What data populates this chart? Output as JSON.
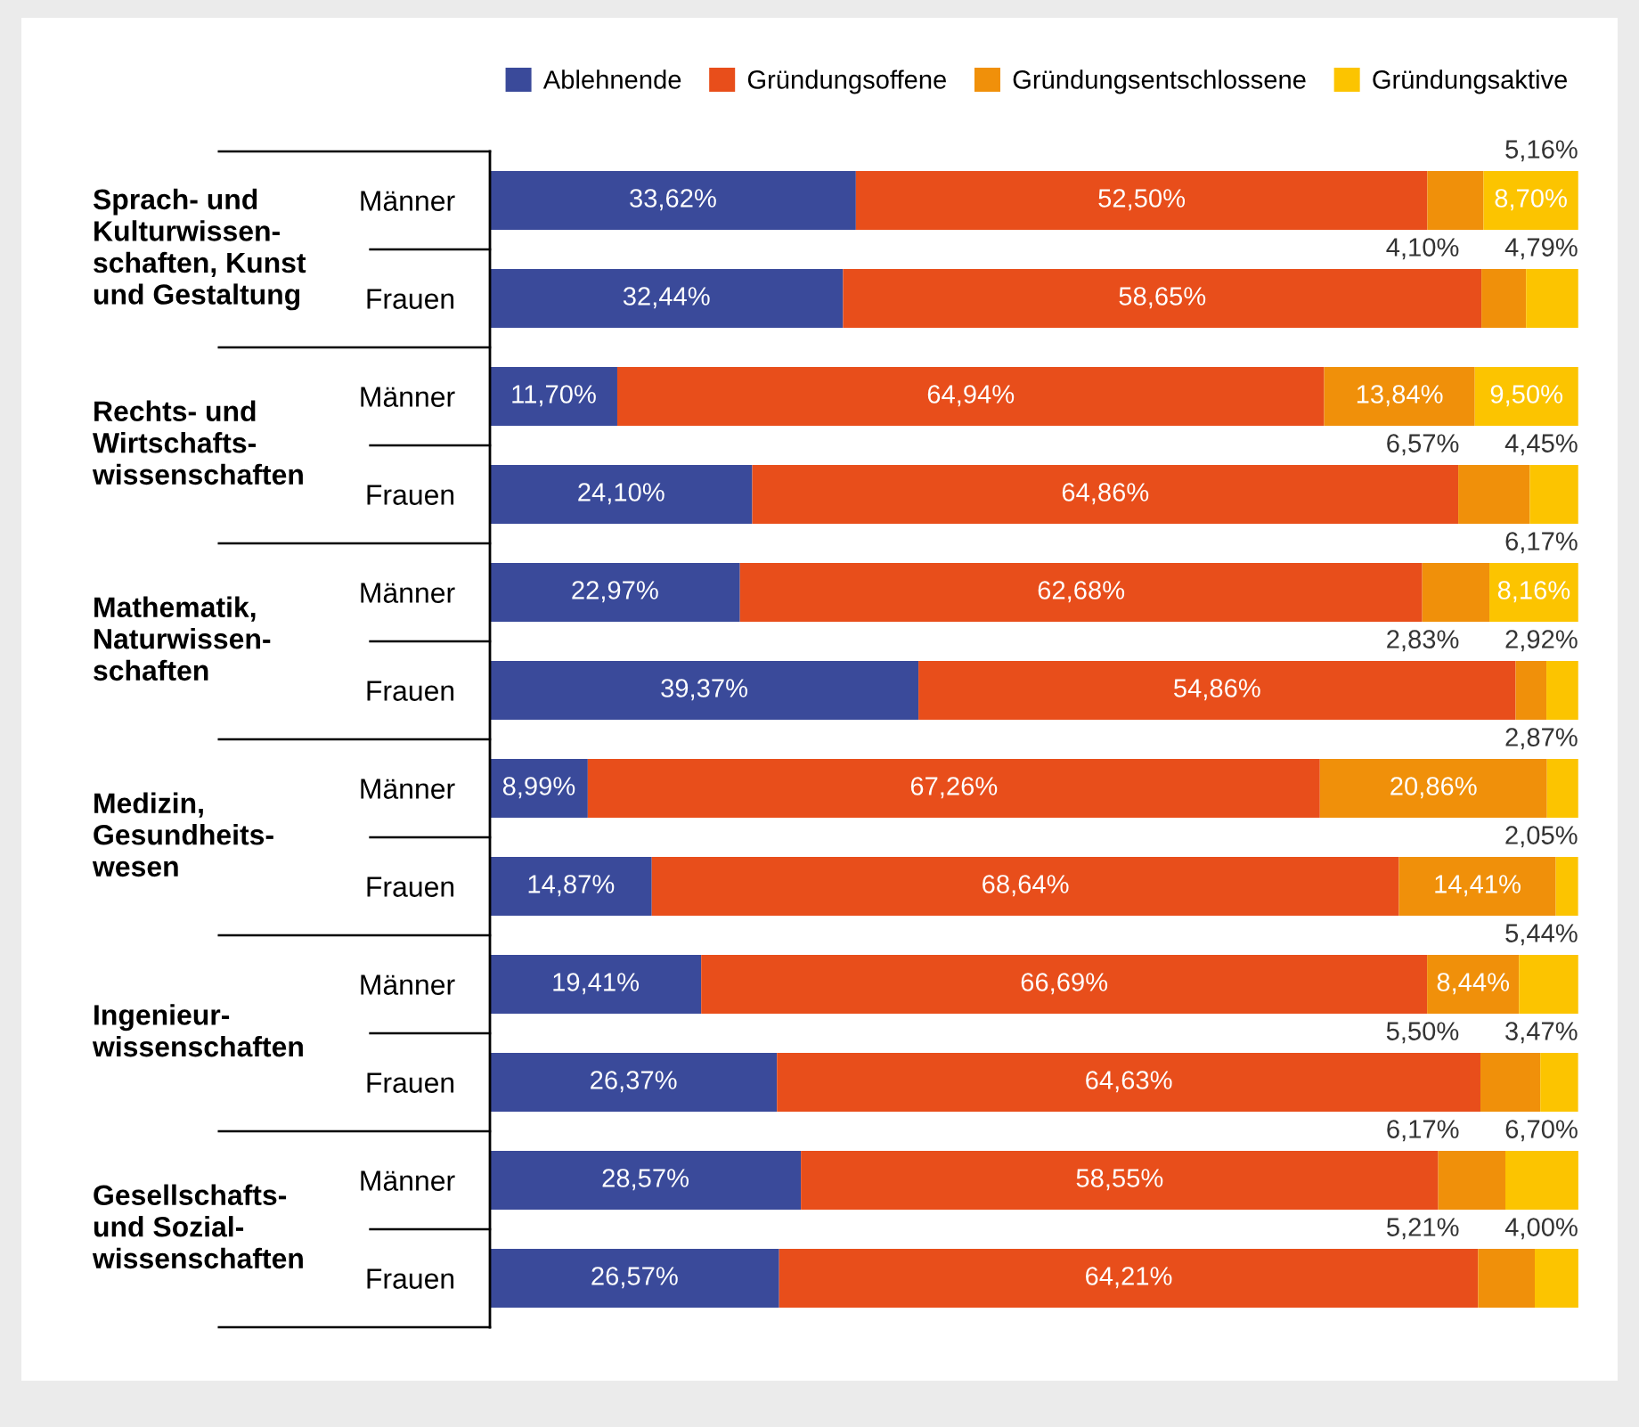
{
  "chart_data": {
    "type": "bar",
    "orientation": "horizontal",
    "stacked": true,
    "categories": [
      "Männer",
      "Frauen",
      "Männer",
      "Frauen",
      "Männer",
      "Frauen",
      "Männer",
      "Frauen",
      "Männer",
      "Frauen",
      "Männer",
      "Frauen"
    ],
    "annotations": [
      "Sprach- und\nKulturwissen-\nschaften, Kunst\nund Gestaltung",
      "Rechts- und\nWirtschafts-\nwissenschaften",
      "Mathematik,\nNaturwissen-\nschaften",
      "Medizin,\nGesundheits-\nwesen",
      "Ingenieur-\nwissenschaften",
      "Gesellschafts-\nund Sozial-\nwissenschaften"
    ],
    "series": [
      {
        "name": "Ablehnende",
        "color": "#3a4a9a",
        "values": [
          33.62,
          32.44,
          11.7,
          24.1,
          22.97,
          39.37,
          8.99,
          14.87,
          19.41,
          26.37,
          28.57,
          26.57
        ],
        "value_labels": [
          "33,62%",
          "32,44%",
          "11,70%",
          "24,10%",
          "22,97%",
          "39,37%",
          "8,99%",
          "14,87%",
          "19,41%",
          "26,37%",
          "28,57%",
          "26,57%"
        ]
      },
      {
        "name": "Gründungsoffene",
        "color": "#e84e1b",
        "values": [
          52.5,
          58.65,
          64.94,
          64.86,
          62.68,
          54.86,
          67.26,
          68.64,
          66.69,
          64.63,
          58.55,
          64.21
        ],
        "value_labels": [
          "52,50%",
          "58,65%",
          "64,94%",
          "64,86%",
          "62,68%",
          "54,86%",
          "67,26%",
          "68,64%",
          "66,69%",
          "64,63%",
          "58,55%",
          "64,21%"
        ]
      },
      {
        "name": "Gründungsentschlossene",
        "color": "#f0900a",
        "values": [
          5.16,
          4.1,
          13.84,
          6.57,
          6.17,
          2.83,
          20.86,
          14.41,
          8.44,
          5.5,
          6.17,
          5.21
        ],
        "value_labels": [
          "5,16%",
          "4,10%",
          "13,84%",
          "6,57%",
          "6,17%",
          "2,83%",
          "20,86%",
          "14,41%",
          "8,44%",
          "5,50%",
          "6,17%",
          "5,21%"
        ]
      },
      {
        "name": "Gründungsaktive",
        "color": "#fcc400",
        "values": [
          8.7,
          4.79,
          9.5,
          4.45,
          8.16,
          2.92,
          2.87,
          2.05,
          5.44,
          3.47,
          6.7,
          4.0
        ],
        "value_labels": [
          "8,70%",
          "4,79%",
          "9,50%",
          "4,45%",
          "8,16%",
          "2,92%",
          "2,87%",
          "2,05%",
          "5,44%",
          "3,47%",
          "6,70%",
          "4,00%"
        ]
      }
    ],
    "xlim": [
      0,
      100
    ],
    "tick_labels": "y",
    "grid": false,
    "legend": "top right"
  }
}
